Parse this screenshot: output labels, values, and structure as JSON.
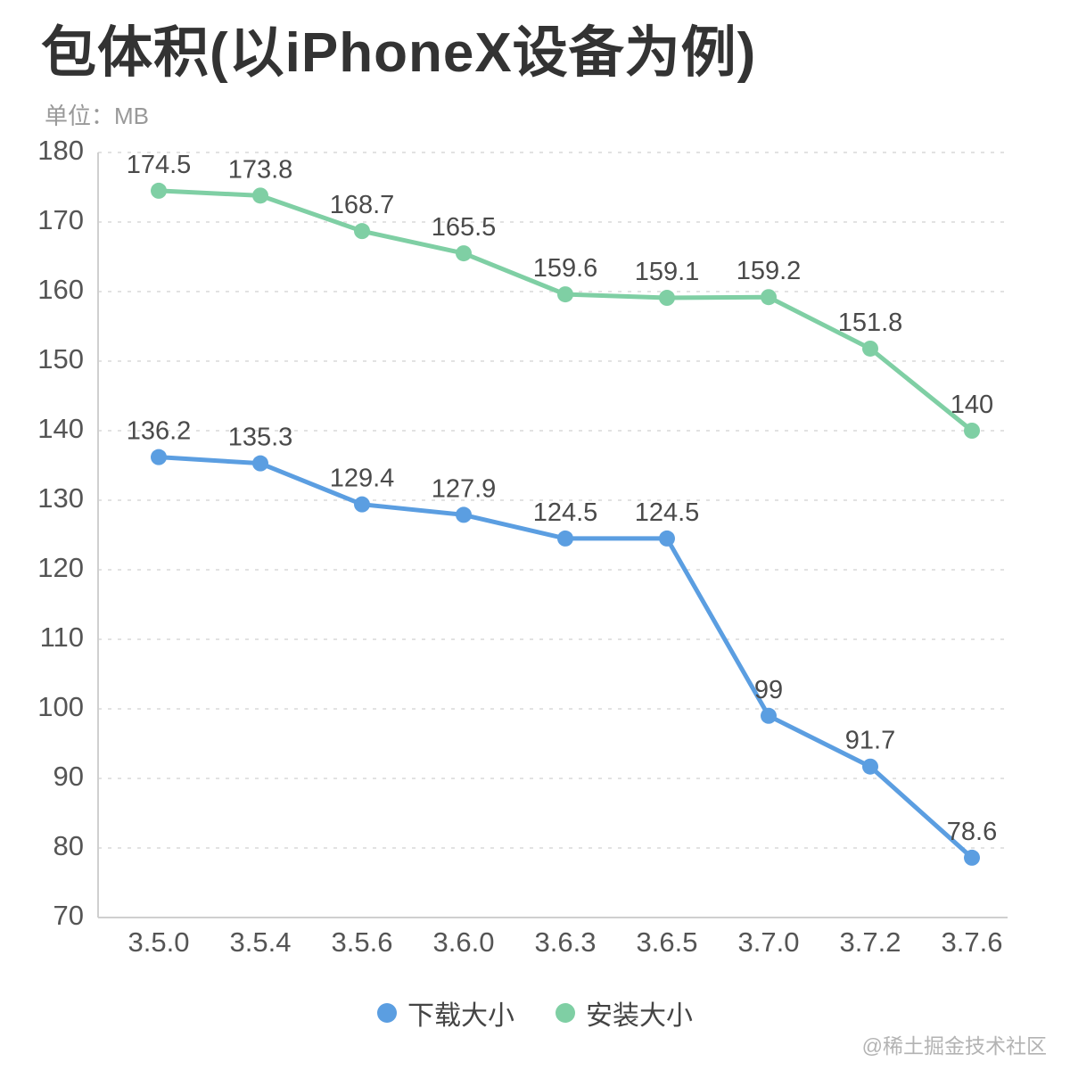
{
  "page": {
    "title": "包体积(以iPhoneX设备为例)",
    "subtitle": "单位：MB",
    "watermark": "@稀土掘金技术社区"
  },
  "chart_data": {
    "type": "line",
    "title": "包体积(以iPhoneX设备为例)",
    "unit_label": "单位：MB",
    "categories": [
      "3.5.0",
      "3.5.4",
      "3.5.6",
      "3.6.0",
      "3.6.3",
      "3.6.5",
      "3.7.0",
      "3.7.2",
      "3.7.6"
    ],
    "series": [
      {
        "name": "下载大小",
        "color": "#5B9EE1",
        "values": [
          136.2,
          135.3,
          129.4,
          127.9,
          124.5,
          124.5,
          99,
          91.7,
          78.6
        ]
      },
      {
        "name": "安装大小",
        "color": "#7FCFA4",
        "values": [
          174.5,
          173.8,
          168.7,
          165.5,
          159.6,
          159.1,
          159.2,
          151.8,
          140
        ]
      }
    ],
    "ylim": [
      70,
      180
    ],
    "ytick_step": 10,
    "grid": "dashed-horizontal",
    "legend_position": "bottom",
    "colors": {
      "grid_line": "#e2e2e2",
      "axis_line": "#cfcfcf",
      "tick_label": "#555555",
      "data_label": "#4a4a4a"
    }
  }
}
